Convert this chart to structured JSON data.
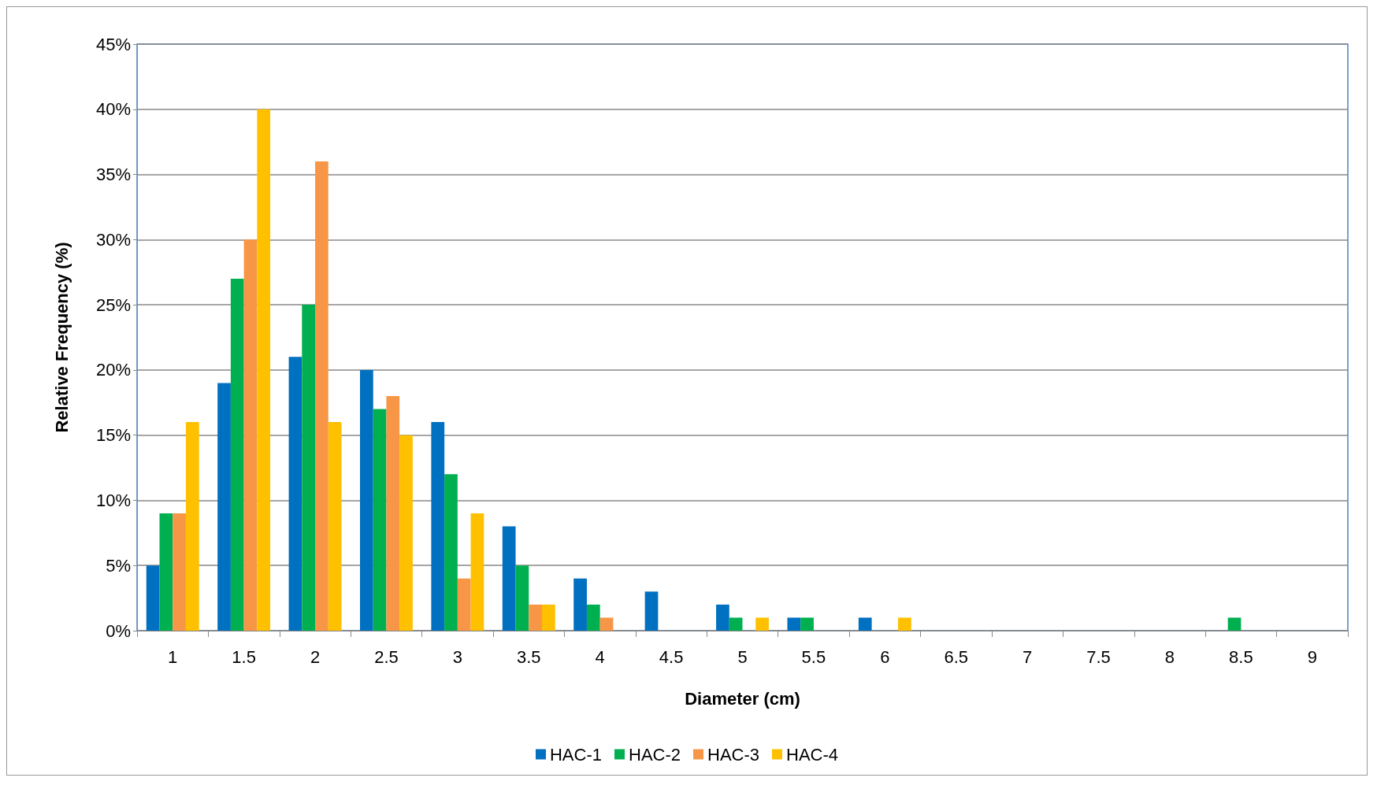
{
  "chart_data": {
    "type": "bar",
    "xlabel": "Diameter (cm)",
    "ylabel": "Relative Frequency (%)",
    "categories": [
      "1",
      "1.5",
      "2",
      "2.5",
      "3",
      "3.5",
      "4",
      "4.5",
      "5",
      "5.5",
      "6",
      "6.5",
      "7",
      "7.5",
      "8",
      "8.5",
      "9"
    ],
    "series": [
      {
        "name": "HAC-1",
        "color": "#0070c0",
        "values": [
          5,
          19,
          21,
          20,
          16,
          8,
          4,
          3,
          2,
          1,
          1,
          0,
          0,
          0,
          0,
          0,
          0
        ]
      },
      {
        "name": "HAC-2",
        "color": "#00b050",
        "values": [
          9,
          27,
          25,
          17,
          12,
          5,
          2,
          0,
          1,
          1,
          0,
          0,
          0,
          0,
          0,
          1,
          0
        ]
      },
      {
        "name": "HAC-3",
        "color": "#f79646",
        "values": [
          9,
          30,
          36,
          18,
          4,
          2,
          1,
          0,
          0,
          0,
          0,
          0,
          0,
          0,
          0,
          0,
          0
        ]
      },
      {
        "name": "HAC-4",
        "color": "#ffc000",
        "values": [
          16,
          40,
          16,
          15,
          9,
          2,
          0,
          0,
          1,
          0,
          1,
          0,
          0,
          0,
          0,
          0,
          0
        ]
      }
    ],
    "ylim": [
      0,
      45
    ],
    "yticks": [
      {
        "value": 0,
        "label": "0%"
      },
      {
        "value": 5,
        "label": "5%"
      },
      {
        "value": 10,
        "label": "10%"
      },
      {
        "value": 15,
        "label": "15%"
      },
      {
        "value": 20,
        "label": "20%"
      },
      {
        "value": 25,
        "label": "25%"
      },
      {
        "value": 30,
        "label": "30%"
      },
      {
        "value": 35,
        "label": "35%"
      },
      {
        "value": 40,
        "label": "40%"
      },
      {
        "value": 45,
        "label": "45%"
      }
    ],
    "grid": "y",
    "legend": "bottom"
  }
}
